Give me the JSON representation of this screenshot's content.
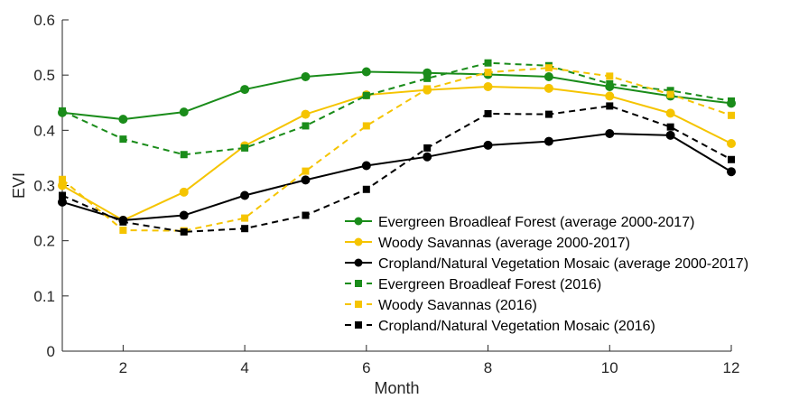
{
  "chart_data": {
    "type": "line",
    "title": "",
    "xlabel": "Month",
    "ylabel": "EVI",
    "xlim": [
      1,
      12
    ],
    "ylim": [
      0,
      0.6
    ],
    "xticks": [
      2,
      4,
      6,
      8,
      10,
      12
    ],
    "xtick_labels": [
      "2",
      "4",
      "6",
      "8",
      "10",
      "12"
    ],
    "yticks": [
      0,
      0.1,
      0.2,
      0.3,
      0.4,
      0.5,
      0.6
    ],
    "ytick_labels": [
      "0",
      "0.1",
      "0.2",
      "0.3",
      "0.4",
      "0.5",
      "0.6"
    ],
    "grid": false,
    "legend_position": "bottom-right",
    "x": [
      1,
      2,
      3,
      4,
      5,
      6,
      7,
      8,
      9,
      10,
      11,
      12
    ],
    "series": [
      {
        "name": "Evergreen Broadleaf Forest (average 2000-2017)",
        "color": "#1a8c1a",
        "line_style": "solid",
        "marker": "circle",
        "values": [
          0.432,
          0.42,
          0.433,
          0.474,
          0.497,
          0.506,
          0.504,
          0.501,
          0.497,
          0.479,
          0.462,
          0.449
        ]
      },
      {
        "name": "Woody Savannas (average 2000-2017)",
        "color": "#f5c400",
        "line_style": "solid",
        "marker": "circle",
        "values": [
          0.3,
          0.237,
          0.288,
          0.372,
          0.429,
          0.464,
          0.473,
          0.479,
          0.476,
          0.462,
          0.431,
          0.376
        ]
      },
      {
        "name": "Cropland/Natural Vegetation Mosaic (average 2000-2017)",
        "color": "#000000",
        "line_style": "solid",
        "marker": "circle",
        "values": [
          0.27,
          0.237,
          0.246,
          0.282,
          0.31,
          0.336,
          0.352,
          0.373,
          0.38,
          0.394,
          0.391,
          0.325
        ]
      },
      {
        "name": "Evergreen Broadleaf Forest (2016)",
        "color": "#1a8c1a",
        "line_style": "dashed",
        "marker": "square",
        "values": [
          0.435,
          0.384,
          0.356,
          0.368,
          0.408,
          0.463,
          0.494,
          0.522,
          0.517,
          0.484,
          0.472,
          0.453
        ]
      },
      {
        "name": "Woody Savannas (2016)",
        "color": "#f5c400",
        "line_style": "dashed",
        "marker": "square",
        "values": [
          0.311,
          0.219,
          0.218,
          0.241,
          0.326,
          0.408,
          0.475,
          0.505,
          0.513,
          0.498,
          0.465,
          0.427
        ]
      },
      {
        "name": "Cropland/Natural Vegetation Mosaic (2016)",
        "color": "#000000",
        "line_style": "dashed",
        "marker": "square",
        "values": [
          0.282,
          0.234,
          0.216,
          0.222,
          0.246,
          0.293,
          0.368,
          0.43,
          0.429,
          0.444,
          0.406,
          0.347
        ]
      }
    ]
  }
}
